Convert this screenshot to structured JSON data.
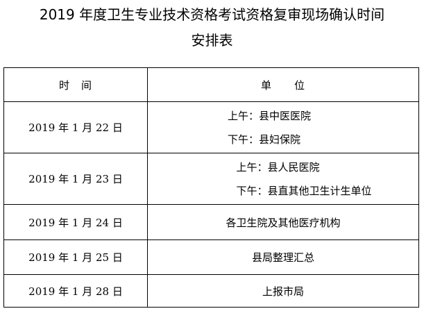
{
  "title": {
    "line1": "2019 年度卫生专业技术资格考试资格复审现场确认时间",
    "line2": "安排表"
  },
  "table": {
    "headers": [
      "时　间",
      "单　　位"
    ],
    "rows": [
      {
        "date": "2019 年 1 月 22 日",
        "units": [
          "上午：县中医医院",
          "下午：县妇保院"
        ]
      },
      {
        "date": "2019 年 1 月 23 日",
        "units": [
          "上午：县人民医院",
          "下午：县直其他卫生计生单位"
        ]
      },
      {
        "date": "2019 年 1 月 24 日",
        "units": [
          "各卫生院及其他医疗机构"
        ]
      },
      {
        "date": "2019 年 1 月 25 日",
        "units": [
          "县局整理汇总"
        ]
      },
      {
        "date": "2019 年 1 月 28 日",
        "units": [
          "上报市局"
        ]
      }
    ]
  }
}
